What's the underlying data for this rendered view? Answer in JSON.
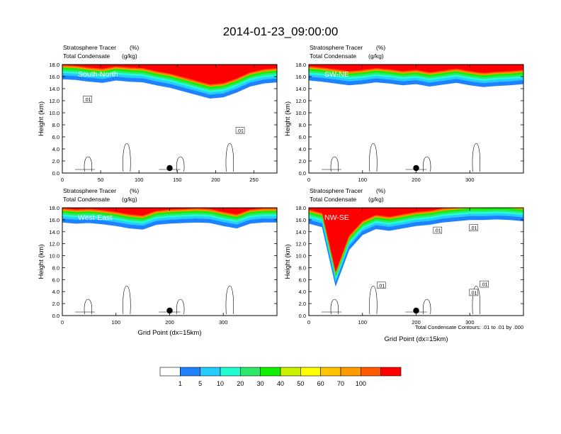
{
  "figure_title": "2014-01-23_09:00:00",
  "colorbar": {
    "colors": [
      "#ffffff",
      "#1e82ff",
      "#27ccff",
      "#21ffd0",
      "#2ee86a",
      "#11f000",
      "#c8f000",
      "#ffff00",
      "#ffc400",
      "#ff9a00",
      "#ff5a00",
      "#ff0000"
    ],
    "labels": [
      "1",
      "5",
      "10",
      "20",
      "30",
      "40",
      "50",
      "60",
      "70",
      "100"
    ]
  },
  "contour_note": "Total Condensate Contours: .01 to .01 by .000",
  "chart_data": [
    {
      "type": "heatmap",
      "title_left_1": "Stratosphere Tracer",
      "title_right_1": "(%)",
      "title_left_2": "Total Condensate",
      "title_right_2": "(g/kg)",
      "panel_label": "South-North",
      "ylabel": "Height (km)",
      "xlabel": "",
      "xlim": [
        0,
        280
      ],
      "ylim": [
        0,
        18
      ],
      "xticks": [
        0,
        50,
        100,
        150,
        200,
        250
      ],
      "xtick_labels": [
        "0",
        "50",
        "100",
        "150",
        "200",
        "250"
      ],
      "yticks": [
        0,
        2,
        4,
        6,
        8,
        10,
        12,
        14,
        16,
        18
      ],
      "ytick_labels": [
        "0.0",
        "2.0",
        "4.0",
        "6.0",
        "8.0",
        "10.0",
        "12.0",
        "14.0",
        "16.0",
        "18.0"
      ],
      "tropopause_km": [
        15.6,
        15.5,
        15.2,
        15.0,
        15.4,
        15.2,
        15.1,
        14.6,
        14.2,
        13.6,
        13.0,
        12.4,
        12.6,
        13.4,
        14.4,
        14.9,
        15.1
      ],
      "marker_x": 140,
      "contour_labels": [
        {
          "x": 33,
          "y": 12.2,
          "text": ".01"
        },
        {
          "x": 232,
          "y": 7.0,
          "text": ".01"
        }
      ]
    },
    {
      "type": "heatmap",
      "title_left_1": "Stratosphere Tracer",
      "title_right_1": "(%)",
      "title_left_2": "Total Condensate",
      "title_right_2": "(g/kg)",
      "panel_label": "SW-NE",
      "ylabel": "Height (km)",
      "xlabel": "",
      "xlim": [
        0,
        400
      ],
      "ylim": [
        0,
        18
      ],
      "xticks": [
        0,
        100,
        200,
        300
      ],
      "xtick_labels": [
        "0",
        "100",
        "200",
        "300"
      ],
      "yticks": [
        0,
        2,
        4,
        6,
        8,
        10,
        12,
        14,
        16,
        18
      ],
      "ytick_labels": [
        "0.0",
        "2.0",
        "4.0",
        "6.0",
        "8.0",
        "10.0",
        "12.0",
        "14.0",
        "16.0",
        "18.0"
      ],
      "tropopause_km": [
        15.4,
        15.2,
        14.9,
        14.6,
        14.8,
        15.1,
        14.9,
        14.6,
        14.8,
        14.4,
        14.7,
        15.0,
        14.6,
        14.3,
        14.5,
        14.6,
        14.8
      ],
      "marker_x": 200,
      "contour_labels": []
    },
    {
      "type": "heatmap",
      "title_left_1": "Stratosphere Tracer",
      "title_right_1": "(%)",
      "title_left_2": "Total Condensate",
      "title_right_2": "(g/kg)",
      "panel_label": "West-East",
      "ylabel": "Height (km)",
      "xlabel": "Grid Point (dx=15km)",
      "xlim": [
        0,
        400
      ],
      "ylim": [
        0,
        18
      ],
      "xticks": [
        0,
        100,
        200,
        300
      ],
      "xtick_labels": [
        "0",
        "100",
        "200",
        "300"
      ],
      "yticks": [
        0,
        2,
        4,
        6,
        8,
        10,
        12,
        14,
        16,
        18
      ],
      "ytick_labels": [
        "0.0",
        "2.0",
        "4.0",
        "6.0",
        "8.0",
        "10.0",
        "12.0",
        "14.0",
        "16.0",
        "18.0"
      ],
      "tropopause_km": [
        15.6,
        15.4,
        15.5,
        15.3,
        15.0,
        14.6,
        14.4,
        15.2,
        15.4,
        15.5,
        15.6,
        15.5,
        15.0,
        14.6,
        15.4,
        15.6,
        15.6
      ],
      "marker_x": 200,
      "contour_labels": []
    },
    {
      "type": "heatmap",
      "title_left_1": "Stratosphere Tracer",
      "title_right_1": "(%)",
      "title_left_2": "Total Condensate",
      "title_right_2": "(g/kg)",
      "panel_label": "NW-SE",
      "ylabel": "Height (km)",
      "xlabel": "Grid Point (dx=15km)",
      "xlim": [
        0,
        400
      ],
      "ylim": [
        0,
        18
      ],
      "xticks": [
        0,
        100,
        200,
        300
      ],
      "xtick_labels": [
        "0",
        "100",
        "200",
        "300"
      ],
      "yticks": [
        0,
        2,
        4,
        6,
        8,
        10,
        12,
        14,
        16,
        18
      ],
      "ytick_labels": [
        "0.0",
        "2.0",
        "4.0",
        "6.0",
        "8.0",
        "10.0",
        "12.0",
        "14.0",
        "16.0",
        "18.0"
      ],
      "tropopause_km": [
        15.4,
        14.8,
        5.0,
        11.0,
        13.5,
        14.5,
        14.2,
        14.6,
        15.0,
        15.2,
        15.6,
        15.8,
        16.0,
        16.0,
        16.1,
        16.0,
        15.8
      ],
      "marker_x": 200,
      "contour_labels": [
        {
          "x": 135,
          "y": 5.0,
          "text": ".01"
        },
        {
          "x": 240,
          "y": 14.2,
          "text": ".01"
        },
        {
          "x": 307,
          "y": 3.8,
          "text": ".01"
        },
        {
          "x": 327,
          "y": 5.2,
          "text": ".01"
        },
        {
          "x": 307,
          "y": 14.6,
          "text": ".01"
        }
      ]
    }
  ]
}
